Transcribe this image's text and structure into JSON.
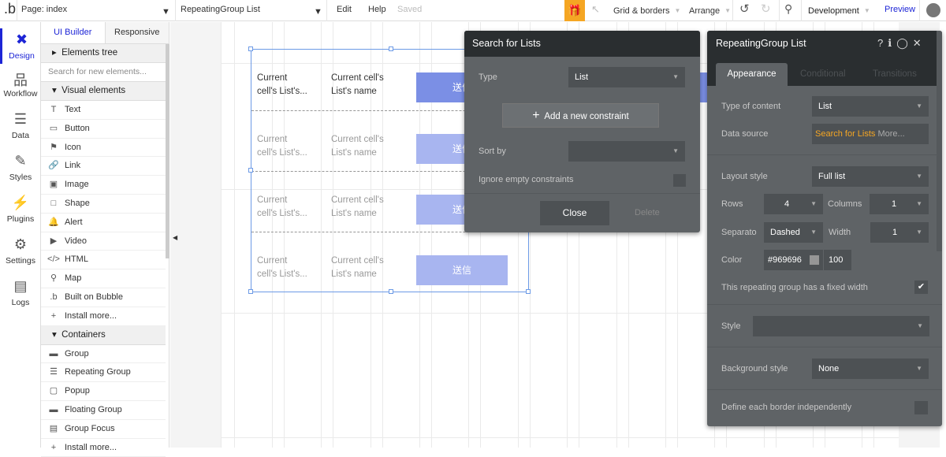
{
  "topbar": {
    "logo": ".b",
    "page": "Page: index",
    "element": "RepeatingGroup List",
    "edit": "Edit",
    "help": "Help",
    "saved": "Saved",
    "grid": "Grid & borders",
    "arrange": "Arrange",
    "env": "Development",
    "preview": "Preview"
  },
  "rail": [
    {
      "label": "Design",
      "icon": "design-icon"
    },
    {
      "label": "Workflow",
      "icon": "workflow-icon"
    },
    {
      "label": "Data",
      "icon": "database-icon"
    },
    {
      "label": "Styles",
      "icon": "brush-icon"
    },
    {
      "label": "Plugins",
      "icon": "plug-icon"
    },
    {
      "label": "Settings",
      "icon": "gear-icon"
    },
    {
      "label": "Logs",
      "icon": "document-icon"
    }
  ],
  "panel": {
    "tab_ui": "UI Builder",
    "tab_responsive": "Responsive",
    "elements_tree": "Elements tree",
    "search_placeholder": "Search for new elements...",
    "visual_header": "Visual elements",
    "visual": [
      {
        "label": "Text",
        "icon": "T"
      },
      {
        "label": "Button",
        "icon": "▭"
      },
      {
        "label": "Icon",
        "icon": "⚑"
      },
      {
        "label": "Link",
        "icon": "🔗"
      },
      {
        "label": "Image",
        "icon": "▣"
      },
      {
        "label": "Shape",
        "icon": "□"
      },
      {
        "label": "Alert",
        "icon": "🔔"
      },
      {
        "label": "Video",
        "icon": "▶"
      },
      {
        "label": "HTML",
        "icon": "</>"
      },
      {
        "label": "Map",
        "icon": "⚲"
      },
      {
        "label": "Built on Bubble",
        "icon": ".b"
      },
      {
        "label": "Install more...",
        "icon": "+"
      }
    ],
    "containers_header": "Containers",
    "containers": [
      {
        "label": "Group",
        "icon": "▬"
      },
      {
        "label": "Repeating Group",
        "icon": "☰"
      },
      {
        "label": "Popup",
        "icon": "▢"
      },
      {
        "label": "Floating Group",
        "icon": "▬"
      },
      {
        "label": "Group Focus",
        "icon": "▤"
      },
      {
        "label": "Install more...",
        "icon": "+"
      }
    ]
  },
  "repeating_group": {
    "rows": [
      {
        "c1a": "Current",
        "c1b": "cell's List's...",
        "c2a": "Current cell's",
        "c2b": "List's name",
        "button": "送信"
      },
      {
        "c1a": "Current",
        "c1b": "cell's List's...",
        "c2a": "Current cell's",
        "c2b": "List's name",
        "button": "送信"
      },
      {
        "c1a": "Current",
        "c1b": "cell's List's...",
        "c2a": "Current cell's",
        "c2b": "List's name",
        "button": "送信"
      },
      {
        "c1a": "Current",
        "c1b": "cell's List's...",
        "c2a": "Current cell's",
        "c2b": "List's name",
        "button": "送信"
      }
    ]
  },
  "search_dialog": {
    "title": "Search for Lists",
    "type_label": "Type",
    "type_value": "List",
    "add_constraint": "Add a new constraint",
    "sort_label": "Sort by",
    "sort_value": "",
    "ignore_label": "Ignore empty constraints",
    "ignore_checked": false,
    "close": "Close",
    "delete": "Delete"
  },
  "props": {
    "title": "RepeatingGroup List",
    "tabs": [
      "Appearance",
      "Conditional",
      "Transitions"
    ],
    "type_label": "Type of content",
    "type_value": "List",
    "source_label": "Data source",
    "source_value": "Search for Lists",
    "source_more": "More...",
    "layout_label": "Layout style",
    "layout_value": "Full list",
    "rows_label": "Rows",
    "rows_value": "4",
    "cols_label": "Columns",
    "cols_value": "1",
    "sep_label": "Separato",
    "sep_value": "Dashed",
    "width_label": "Width",
    "width_value": "1",
    "color_label": "Color",
    "color_value": "#969696",
    "opacity_value": "100",
    "fixed_label": "This repeating group has a fixed width",
    "fixed_checked": true,
    "style_label": "Style",
    "style_value": "",
    "bg_label": "Background style",
    "bg_value": "None",
    "border_label": "Define each border independently"
  },
  "colors": {
    "accent": "#1d25d6",
    "gift": "#f5a623",
    "button_primary": "#7b8fe5",
    "button_light": "#a8b5f0",
    "source": "#f5a623"
  }
}
